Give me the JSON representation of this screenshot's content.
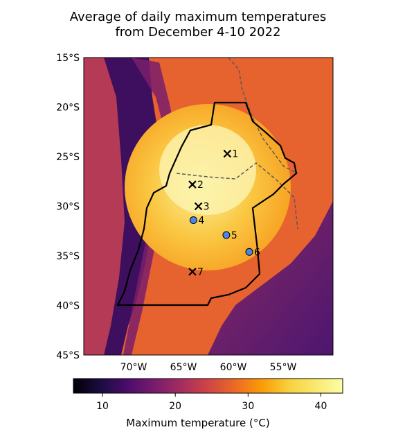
{
  "title": {
    "line1": "Average of daily maximum temperatures",
    "line2": "from December 4-10 2022"
  },
  "map": {
    "lat_ticks": [
      "15°S",
      "20°S",
      "25°S",
      "30°S",
      "35°S",
      "40°S",
      "45°S"
    ],
    "lon_ticks": [
      "70°W",
      "65°W",
      "60°W",
      "55°W"
    ],
    "extent": {
      "lon": [
        -75,
        -50
      ],
      "lat": [
        -45,
        -15
      ]
    },
    "colormap": "inferno",
    "stations": [
      {
        "label": "1",
        "marker": "x",
        "lon": -60.6,
        "lat": -24.7
      },
      {
        "label": "2",
        "marker": "x",
        "lon": -64.1,
        "lat": -27.8
      },
      {
        "label": "3",
        "marker": "x",
        "lon": -63.5,
        "lat": -30.0
      },
      {
        "label": "4",
        "marker": "circle",
        "lon": -64.0,
        "lat": -31.4
      },
      {
        "label": "5",
        "marker": "circle",
        "lon": -60.7,
        "lat": -32.9
      },
      {
        "label": "6",
        "marker": "circle",
        "lon": -58.4,
        "lat": -34.6
      },
      {
        "label": "7",
        "marker": "x",
        "lon": -64.1,
        "lat": -36.6
      }
    ]
  },
  "colorbar": {
    "ticks": [
      "10",
      "20",
      "30",
      "40"
    ],
    "tick_values": [
      10,
      20,
      30,
      40
    ],
    "range": [
      6,
      43
    ],
    "label": "Maximum temperature (°C)"
  },
  "colors": {
    "station_circle": "#4a86e8",
    "region_outline": "#000000",
    "border_dashed": "#555555"
  }
}
